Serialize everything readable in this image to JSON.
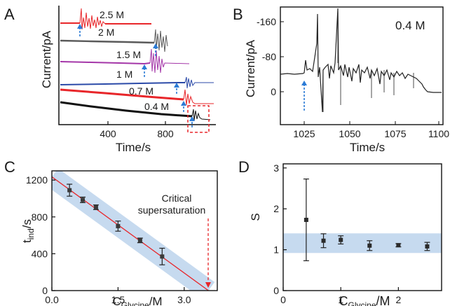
{
  "panels": {
    "a": {
      "letter": "A",
      "ylabel": "Current/pA",
      "xlabel": "Time/s",
      "xticks": [
        "400",
        "800"
      ],
      "traces": [
        {
          "label": "2.5 M",
          "color": "#e8262a"
        },
        {
          "label": "2 M",
          "color": "#5a5a5a"
        },
        {
          "label": "1.5 M",
          "color": "#a436a8"
        },
        {
          "label": "1 M",
          "color": "#2b4aa8"
        },
        {
          "label": "0.7 M",
          "color": "#e8262a"
        },
        {
          "label": "0.4 M",
          "color": "#111111"
        }
      ]
    },
    "b": {
      "letter": "B",
      "ylabel": "Current/pA",
      "xlabel": "Time/s",
      "annotation": "0.4 M",
      "yticks": [
        "-160",
        "-80",
        "0"
      ],
      "xticks": [
        "1025",
        "1050",
        "1075",
        "1100"
      ]
    },
    "c": {
      "letter": "C",
      "annotation_line1": "Critical",
      "annotation_line2": "supersaturation"
    },
    "d": {
      "letter": "D"
    }
  },
  "chart_data": [
    {
      "panel": "C",
      "type": "scatter",
      "x": [
        0.4,
        0.7,
        1.0,
        1.5,
        2.0,
        2.5
      ],
      "y": [
        1090,
        985,
        905,
        700,
        545,
        370
      ],
      "yerr": [
        65,
        30,
        25,
        55,
        25,
        90
      ],
      "fit_line": {
        "x": [
          0,
          3.55
        ],
        "y": [
          1235,
          0
        ]
      },
      "xlabel_main": "C",
      "xlabel_sub": "Glycine",
      "xlabel_unit": "/M",
      "ylabel_main": "t",
      "ylabel_sub": "ind",
      "ylabel_unit": "/s",
      "xlim": [
        0,
        3.75
      ],
      "ylim": [
        0,
        1300
      ],
      "xticks": [
        "0.0",
        "1.5",
        "3.0"
      ],
      "yticks": [
        "0",
        "400",
        "800",
        "1200"
      ],
      "colors": {
        "line": "#e8262a",
        "band": "#bcd4ec",
        "marker": "#3a3a3a"
      }
    },
    {
      "panel": "D",
      "type": "scatter",
      "x": [
        0.4,
        0.7,
        1.0,
        1.5,
        2.0,
        2.5
      ],
      "y": [
        1.73,
        1.22,
        1.24,
        1.1,
        1.11,
        1.08
      ],
      "yerr": [
        1.0,
        0.17,
        0.1,
        0.12,
        0.04,
        0.1
      ],
      "band": [
        0.92,
        1.4
      ],
      "xlabel_main": "C",
      "xlabel_sub": "Glycine",
      "xlabel_unit": "/M",
      "ylabel": "S",
      "xlim": [
        0,
        2.75
      ],
      "ylim": [
        0,
        3.1
      ],
      "xticks": [
        "0",
        "1",
        "2"
      ],
      "yticks": [
        "0",
        "1",
        "2",
        "3"
      ],
      "colors": {
        "band": "#bcd4ec",
        "marker": "#2b2b2b"
      }
    }
  ]
}
